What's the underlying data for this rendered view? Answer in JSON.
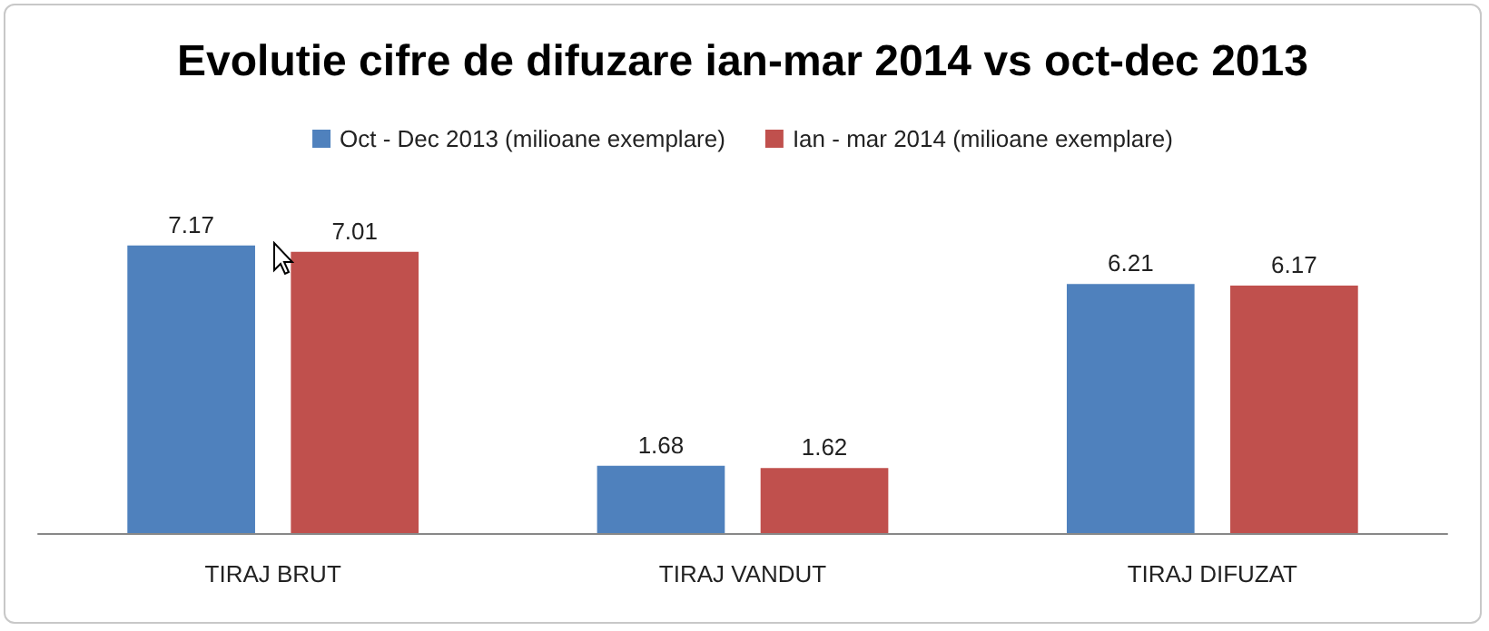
{
  "chart_data": {
    "type": "bar",
    "title": "Evolutie cifre de difuzare ian-mar 2014 vs oct-dec 2013",
    "categories": [
      "TIRAJ BRUT",
      "TIRAJ VANDUT",
      "TIRAJ DIFUZAT"
    ],
    "series": [
      {
        "name": "Oct - Dec 2013 (milioane exemplare)",
        "color": "#4f81bd",
        "values": [
          7.17,
          1.68,
          6.21
        ]
      },
      {
        "name": "Ian - mar 2014 (milioane exemplare)",
        "color": "#c0504d",
        "values": [
          7.01,
          1.62,
          6.17
        ]
      }
    ],
    "data_labels": true,
    "legend": "top"
  }
}
